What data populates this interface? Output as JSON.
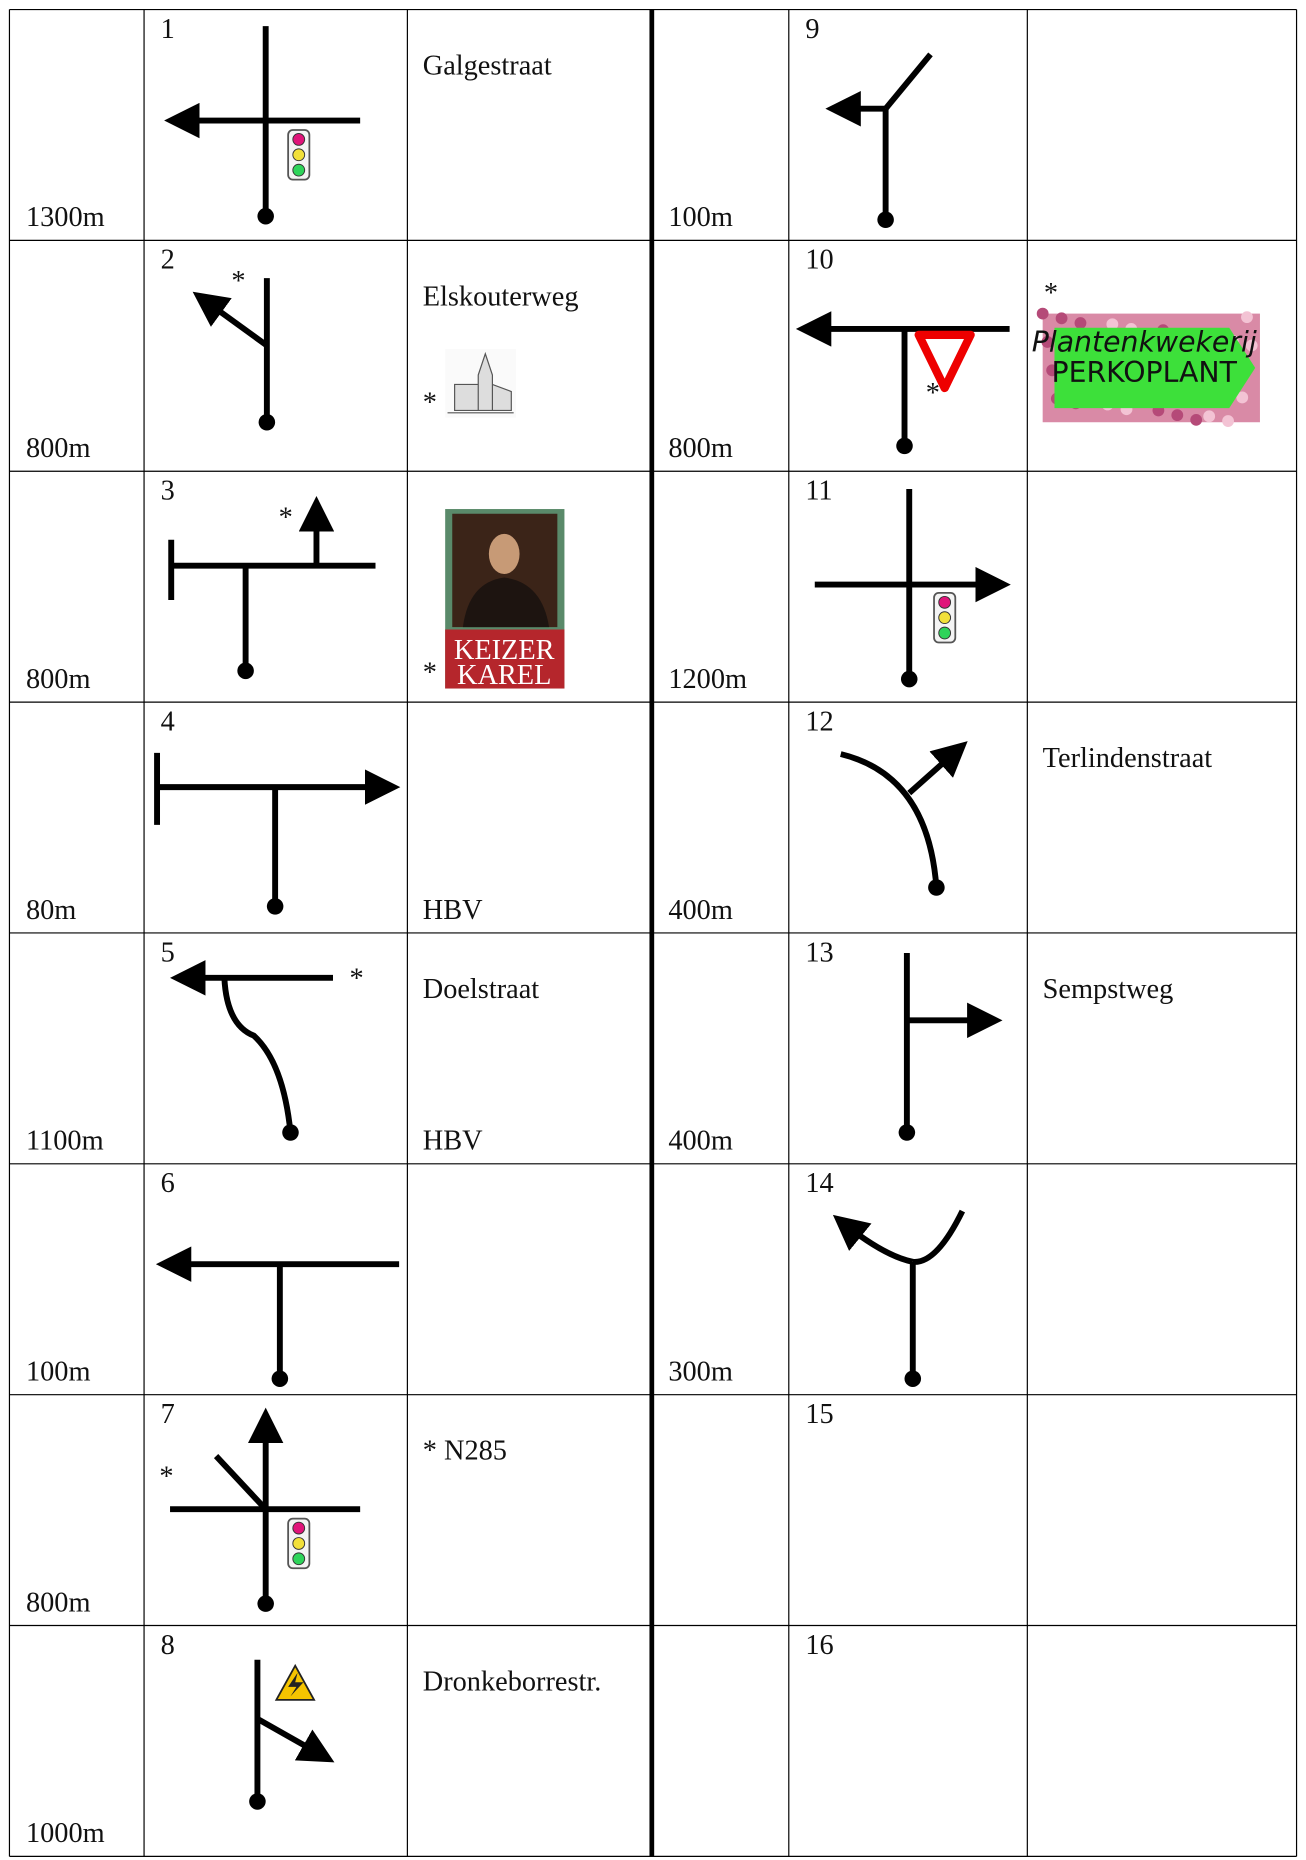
{
  "table": {
    "left": [
      {
        "number": "1",
        "distance": "1300m",
        "street": "Galgestraat"
      },
      {
        "number": "2",
        "distance": "800m",
        "street": "Elskouterweg",
        "diagram_note": "*",
        "image_note": "*"
      },
      {
        "number": "3",
        "distance": "800m",
        "diagram_note": "*",
        "image_note": "*",
        "image_text": [
          "KEIZER",
          "KAREL"
        ]
      },
      {
        "number": "4",
        "distance": "80m",
        "bottom_text": "HBV"
      },
      {
        "number": "5",
        "distance": "1100m",
        "street": "Doelstraat",
        "diagram_note": "*",
        "bottom_text": "HBV"
      },
      {
        "number": "6",
        "distance": "100m"
      },
      {
        "number": "7",
        "distance": "800m",
        "street": "* N285",
        "diagram_note": "*"
      },
      {
        "number": "8",
        "distance": "1000m",
        "street": "Dronkeborrestr."
      }
    ],
    "right": [
      {
        "number": "9",
        "distance": "100m"
      },
      {
        "number": "10",
        "distance": "800m",
        "diagram_note": "*",
        "image_note": "*",
        "image_text": [
          "Plantenkwekerij",
          "PERKOPLANT"
        ]
      },
      {
        "number": "11",
        "distance": "1200m"
      },
      {
        "number": "12",
        "distance": "400m",
        "street": "Terlindenstraat"
      },
      {
        "number": "13",
        "distance": "400m",
        "street": "Sempstweg"
      },
      {
        "number": "14",
        "distance": "300m"
      },
      {
        "number": "15"
      },
      {
        "number": "16"
      }
    ]
  }
}
